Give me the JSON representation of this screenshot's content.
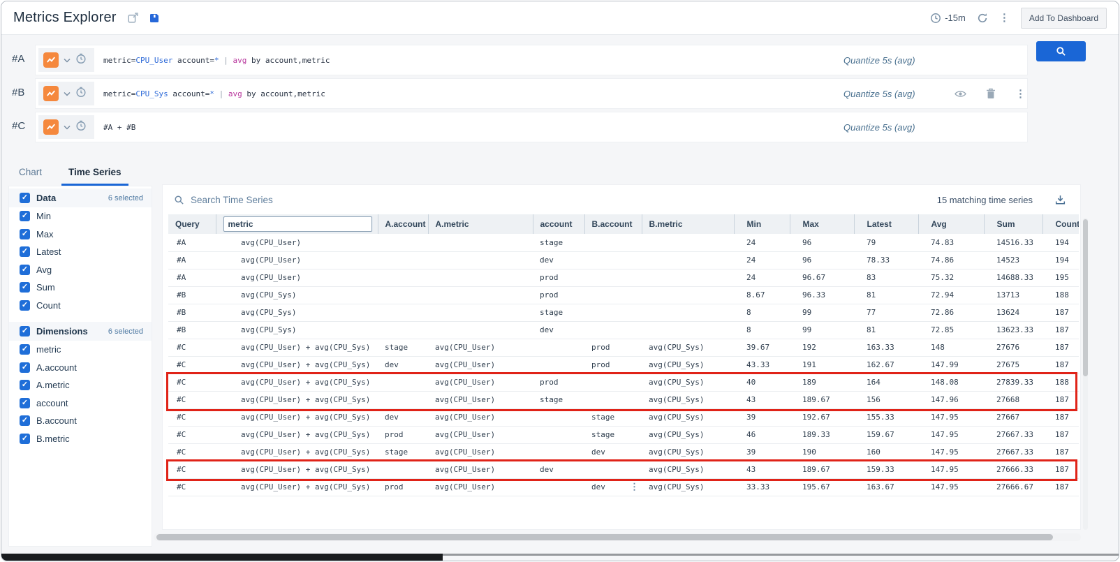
{
  "header": {
    "title": "Metrics Explorer",
    "time_range": "-15m",
    "add_button": "Add To Dashboard"
  },
  "queries": [
    {
      "label": "#A",
      "parts": [
        "metric=",
        "CPU_User",
        " account=",
        "*",
        " | ",
        "avg",
        " by account,metric"
      ],
      "quantize": "Quantize 5s (avg)"
    },
    {
      "label": "#B",
      "parts": [
        "metric=",
        "CPU_Sys",
        " account=",
        "*",
        " | ",
        "avg",
        " by account,metric"
      ],
      "quantize": "Quantize 5s (avg)"
    },
    {
      "label": "#C",
      "parts": [
        "#A + #B"
      ],
      "quantize": "Quantize 5s (avg)"
    }
  ],
  "tabs": [
    {
      "label": "Chart",
      "active": false
    },
    {
      "label": "Time Series",
      "active": true
    }
  ],
  "sidebar": {
    "sections": [
      {
        "title": "Data",
        "count_label": "6 selected",
        "items": [
          "Min",
          "Max",
          "Latest",
          "Avg",
          "Sum",
          "Count"
        ]
      },
      {
        "title": "Dimensions",
        "count_label": "6 selected",
        "items": [
          "metric",
          "A.account",
          "A.metric",
          "account",
          "B.account",
          "B.metric"
        ]
      }
    ]
  },
  "table": {
    "search_placeholder": "Search Time Series",
    "matching_label": "15 matching time series",
    "columns": [
      "Query",
      "metric",
      "A.account",
      "A.metric",
      "account",
      "B.account",
      "B.metric",
      "Min",
      "Max",
      "Latest",
      "Avg",
      "Sum",
      "Count"
    ],
    "rows": [
      [
        "#A",
        "avg(CPU_User)",
        "",
        "",
        "stage",
        "",
        "",
        "24",
        "96",
        "79",
        "74.83",
        "14516.33",
        "194"
      ],
      [
        "#A",
        "avg(CPU_User)",
        "",
        "",
        "dev",
        "",
        "",
        "24",
        "96",
        "78.33",
        "74.86",
        "14523",
        "194"
      ],
      [
        "#A",
        "avg(CPU_User)",
        "",
        "",
        "prod",
        "",
        "",
        "24",
        "96.67",
        "83",
        "75.32",
        "14688.33",
        "195"
      ],
      [
        "#B",
        "avg(CPU_Sys)",
        "",
        "",
        "prod",
        "",
        "",
        "8.67",
        "96.33",
        "81",
        "72.94",
        "13713",
        "188"
      ],
      [
        "#B",
        "avg(CPU_Sys)",
        "",
        "",
        "stage",
        "",
        "",
        "8",
        "99",
        "77",
        "72.86",
        "13624",
        "187"
      ],
      [
        "#B",
        "avg(CPU_Sys)",
        "",
        "",
        "dev",
        "",
        "",
        "8",
        "99",
        "81",
        "72.85",
        "13623.33",
        "187"
      ],
      [
        "#C",
        "avg(CPU_User) + avg(CPU_Sys)",
        "stage",
        "avg(CPU_User)",
        "",
        "prod",
        "avg(CPU_Sys)",
        "39.67",
        "192",
        "163.33",
        "148",
        "27676",
        "187"
      ],
      [
        "#C",
        "avg(CPU_User) + avg(CPU_Sys)",
        "dev",
        "avg(CPU_User)",
        "",
        "prod",
        "avg(CPU_Sys)",
        "43.33",
        "191",
        "162.67",
        "147.99",
        "27675",
        "187"
      ],
      [
        "#C",
        "avg(CPU_User) + avg(CPU_Sys)",
        "",
        "avg(CPU_User)",
        "prod",
        "",
        "avg(CPU_Sys)",
        "40",
        "189",
        "164",
        "148.08",
        "27839.33",
        "188"
      ],
      [
        "#C",
        "avg(CPU_User) + avg(CPU_Sys)",
        "",
        "avg(CPU_User)",
        "stage",
        "",
        "avg(CPU_Sys)",
        "43",
        "189.67",
        "156",
        "147.96",
        "27668",
        "187"
      ],
      [
        "#C",
        "avg(CPU_User) + avg(CPU_Sys)",
        "dev",
        "avg(CPU_User)",
        "",
        "stage",
        "avg(CPU_Sys)",
        "39",
        "192.67",
        "155.33",
        "147.95",
        "27667",
        "187"
      ],
      [
        "#C",
        "avg(CPU_User) + avg(CPU_Sys)",
        "prod",
        "avg(CPU_User)",
        "",
        "stage",
        "avg(CPU_Sys)",
        "46",
        "189.33",
        "159.67",
        "147.95",
        "27667.33",
        "187"
      ],
      [
        "#C",
        "avg(CPU_User) + avg(CPU_Sys)",
        "stage",
        "avg(CPU_User)",
        "",
        "dev",
        "avg(CPU_Sys)",
        "39",
        "190",
        "160",
        "147.95",
        "27667.33",
        "187"
      ],
      [
        "#C",
        "avg(CPU_User) + avg(CPU_Sys)",
        "",
        "avg(CPU_User)",
        "dev",
        "",
        "avg(CPU_Sys)",
        "43",
        "189.67",
        "159.33",
        "147.95",
        "27666.33",
        "187"
      ],
      [
        "#C",
        "avg(CPU_User) + avg(CPU_Sys)",
        "prod",
        "avg(CPU_User)",
        "",
        "dev",
        "avg(CPU_Sys)",
        "33.33",
        "195.67",
        "163.67",
        "147.95",
        "27666.67",
        "187"
      ]
    ],
    "highlight_groups": [
      {
        "start": 8,
        "end": 9
      },
      {
        "start": 13,
        "end": 13
      }
    ],
    "kebab_cell": {
      "row": 14,
      "col": 5
    }
  },
  "icons": {
    "check": "✓",
    "kebab": "⋮"
  },
  "colors": {
    "accent_blue": "#1a66d6",
    "checkbox_blue": "#1f6ed8",
    "query_icon_orange": "#f5883d",
    "highlight_red": "#e02318",
    "metric_value_blue": "#2f6bd8",
    "aggregate_magenta": "#b9399e"
  }
}
